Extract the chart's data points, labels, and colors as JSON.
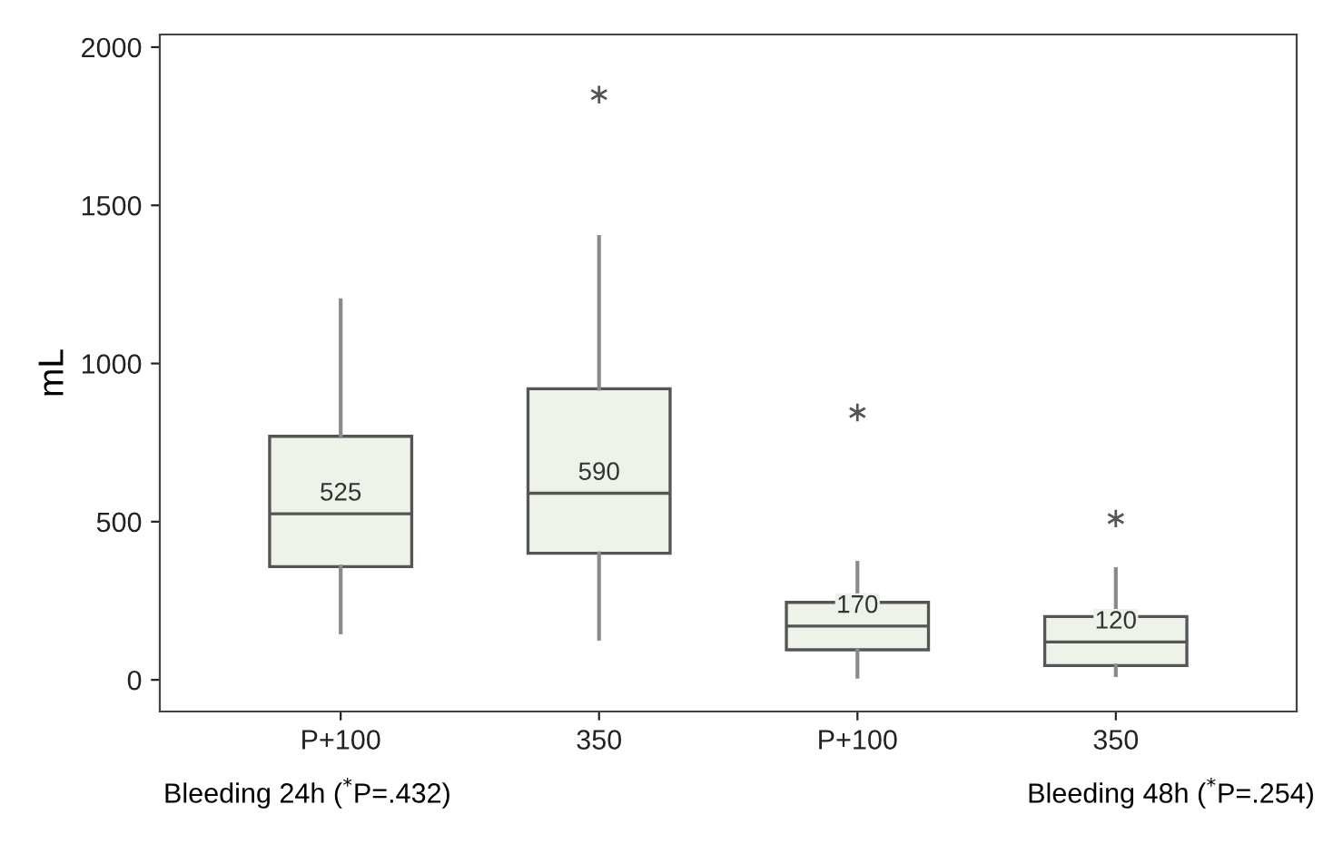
{
  "chart_data": {
    "type": "box",
    "ylabel": "mL",
    "categories": [
      "P+100",
      "350",
      "P+100",
      "350"
    ],
    "boxes": [
      {
        "low": 150,
        "q1": 358,
        "median": 525,
        "q3": 770,
        "high": 1200
      },
      {
        "low": 130,
        "q1": 400,
        "median": 590,
        "q3": 920,
        "high": 1400,
        "outliers": [
          1850
        ]
      },
      {
        "low": 10,
        "q1": 95,
        "median": 170,
        "q3": 245,
        "high": 370,
        "outliers": [
          845
        ]
      },
      {
        "low": 15,
        "q1": 45,
        "median": 120,
        "q3": 200,
        "high": 350,
        "outliers": [
          510
        ]
      }
    ],
    "color": "#eef3ea",
    "value_labels": [
      "525",
      "590",
      "170",
      "120"
    ],
    "marker": "star",
    "ylim": [
      -100,
      2040
    ],
    "yticks": [
      0,
      500,
      1000,
      1500,
      2000
    ],
    "grid": false,
    "annotations": [
      "Bleeding 24h ($^{*}$P=.432)",
      "Bleeding 48h ($^{*}$P=.254)"
    ]
  }
}
